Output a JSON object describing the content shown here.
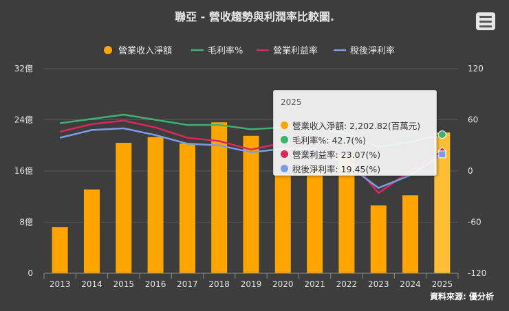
{
  "title": "聯亞 - 營收趨勢與利潤率比較圖.",
  "source": "資料來源: 優分析",
  "colors": {
    "revenue": "#FFA500",
    "gross": "#3CB371",
    "operating": "#DC2858",
    "net": "#7B9EEA"
  },
  "chart_data": {
    "type": "bar",
    "categories": [
      "2013",
      "2014",
      "2015",
      "2016",
      "2017",
      "2018",
      "2019",
      "2020",
      "2021",
      "2022",
      "2023",
      "2024",
      "2025"
    ],
    "left_axis": {
      "ylim": [
        0,
        32
      ],
      "ticks": [
        0,
        8,
        16,
        24,
        32
      ],
      "tick_labels": [
        "0",
        "8億",
        "16億",
        "24億",
        "32億"
      ]
    },
    "right_axis": {
      "ylim": [
        -120,
        120
      ],
      "ticks": [
        -120,
        -60,
        0,
        60,
        120
      ],
      "tick_labels": [
        "-120",
        "-60",
        "0",
        "60",
        "120"
      ]
    },
    "series": [
      {
        "name": "營業收入淨額",
        "type": "bar",
        "axis": "left",
        "unit": "億",
        "values": [
          7.2,
          13.1,
          20.4,
          21.3,
          20.3,
          23.6,
          21.5,
          15.5,
          16.2,
          18.5,
          10.6,
          12.2,
          22.03
        ]
      },
      {
        "name": "毛利率%",
        "type": "line",
        "axis": "right",
        "values": [
          56,
          61,
          66,
          60,
          54,
          54,
          49,
          51,
          50,
          44,
          28,
          34,
          42.7
        ]
      },
      {
        "name": "營業利益率",
        "type": "line",
        "axis": "right",
        "values": [
          46,
          55,
          59,
          51,
          39,
          35,
          25,
          33,
          33,
          19,
          -26,
          0,
          23.07
        ]
      },
      {
        "name": "稅後淨利率",
        "type": "line",
        "axis": "right",
        "values": [
          39,
          48,
          50,
          42,
          32,
          30,
          22,
          26,
          26,
          8,
          -20,
          -5,
          19.45
        ]
      }
    ],
    "legend": "top-center",
    "grid": true
  },
  "tooltip": {
    "header": "2025",
    "rows": [
      {
        "color": "#FFA500",
        "label": "營業收入淨額: 2,202.82(百萬元)"
      },
      {
        "color": "#3CB371",
        "label": "毛利率%: 42.7(%)"
      },
      {
        "color": "#DC2858",
        "label": "營業利益率: 23.07(%)"
      },
      {
        "color": "#7B9EEA",
        "label": "稅後淨利率: 19.45(%)"
      }
    ]
  }
}
